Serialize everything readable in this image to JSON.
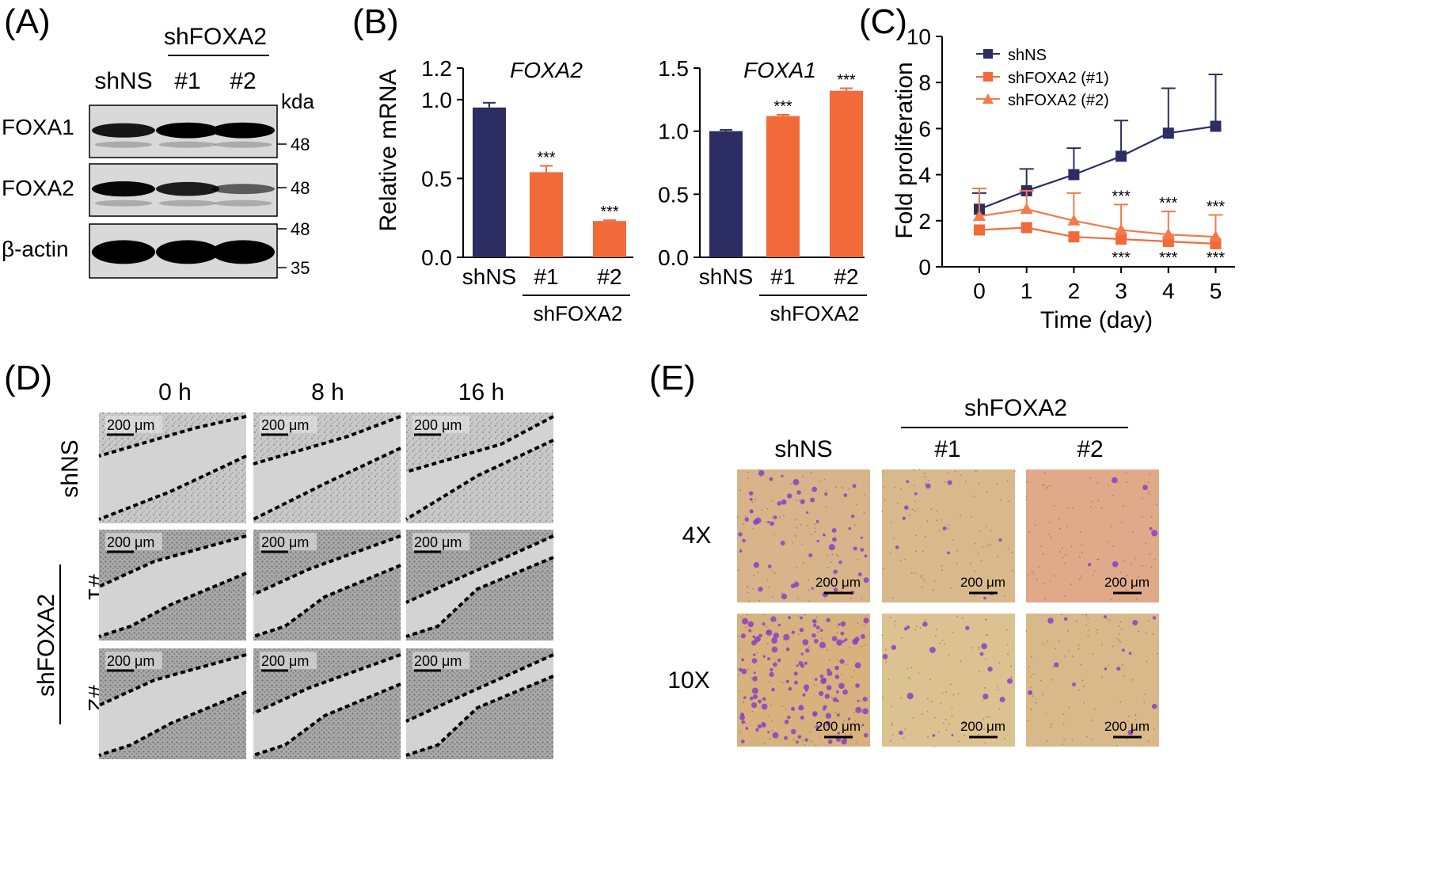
{
  "panel_labels": {
    "a": "(A)",
    "b": "(B)",
    "c": "(C)",
    "d": "(D)",
    "e": "(E)"
  },
  "western": {
    "group_label": "shFOXA2",
    "lanes": [
      "shNS",
      "#1",
      "#2"
    ],
    "unit": "kda",
    "rows": [
      {
        "label": "FOXA1",
        "markers": [
          "48"
        ],
        "bands": [
          0.85,
          1.0,
          1.0
        ]
      },
      {
        "label": "FOXA2",
        "markers": [
          "48"
        ],
        "bands": [
          0.95,
          0.8,
          0.35
        ]
      },
      {
        "label": "β-actin",
        "markers": [
          "48",
          "35"
        ],
        "bands": [
          1.0,
          1.0,
          1.0
        ]
      }
    ]
  },
  "colors": {
    "navy": "#2b2d63",
    "orange": "#f26a3a",
    "orange_light": "#f47a4a"
  },
  "chart_data": [
    {
      "type": "bar",
      "title": "FOXA2",
      "ylabel": "Relative mRNA",
      "categories": [
        "shNS",
        "#1",
        "#2"
      ],
      "group_label": "shFOXA2",
      "values": [
        0.95,
        0.54,
        0.23
      ],
      "errors": [
        0.03,
        0.04,
        0.005
      ],
      "significance": [
        "",
        "***",
        "***"
      ],
      "ylim": [
        0,
        1.2
      ],
      "yticks": [
        "0.0",
        "0.5",
        "1.0",
        "1.2"
      ]
    },
    {
      "type": "bar",
      "title": "FOXA1",
      "ylabel": "",
      "categories": [
        "shNS",
        "#1",
        "#2"
      ],
      "group_label": "shFOXA2",
      "values": [
        1.0,
        1.12,
        1.32
      ],
      "errors": [
        0.01,
        0.01,
        0.02
      ],
      "significance": [
        "",
        "***",
        "***"
      ],
      "ylim": [
        0,
        1.5
      ],
      "yticks": [
        "0.0",
        "0.5",
        "1.0",
        "1.5"
      ]
    },
    {
      "type": "line",
      "xlabel": "Time (day)",
      "ylabel": "Fold proliferation",
      "x": [
        0,
        1,
        2,
        3,
        4,
        5
      ],
      "xticks": [
        "0",
        "1",
        "2",
        "3",
        "4",
        "5"
      ],
      "ylim": [
        0,
        10
      ],
      "yticks": [
        "0",
        "2",
        "4",
        "6",
        "8",
        "10"
      ],
      "series": [
        {
          "name": "shNS",
          "values": [
            2.5,
            3.3,
            4.0,
            4.8,
            5.8,
            6.1
          ],
          "errors": [
            0.7,
            0.95,
            1.15,
            1.55,
            1.95,
            2.25
          ],
          "marker": "square"
        },
        {
          "name": "shFOXA2 (#1)",
          "values": [
            1.6,
            1.7,
            1.3,
            1.2,
            1.1,
            1.0
          ],
          "errors": [
            0,
            0,
            0,
            0,
            0,
            0
          ],
          "marker": "square"
        },
        {
          "name": "shFOXA2 (#2)",
          "values": [
            2.2,
            2.5,
            2.0,
            1.6,
            1.4,
            1.3
          ],
          "errors": [
            1.2,
            0.8,
            1.2,
            1.1,
            1.0,
            0.95
          ],
          "marker": "triangle"
        }
      ],
      "significance_upper": [
        "",
        "",
        "",
        "***",
        "***",
        "***"
      ],
      "significance_lower": [
        "",
        "",
        "",
        "***",
        "***",
        "***"
      ]
    }
  ],
  "wound": {
    "timepoints": [
      "0 h",
      "8 h",
      "16 h"
    ],
    "rows": [
      "shNS",
      "#1",
      "#2"
    ],
    "group_label": "shFOXA2",
    "scale_label": "200 μm"
  },
  "invasion": {
    "group_label": "shFOXA2",
    "columns": [
      "shNS",
      "#1",
      "#2"
    ],
    "rows": [
      "4X",
      "10X"
    ],
    "scale_label": "200 μm"
  }
}
